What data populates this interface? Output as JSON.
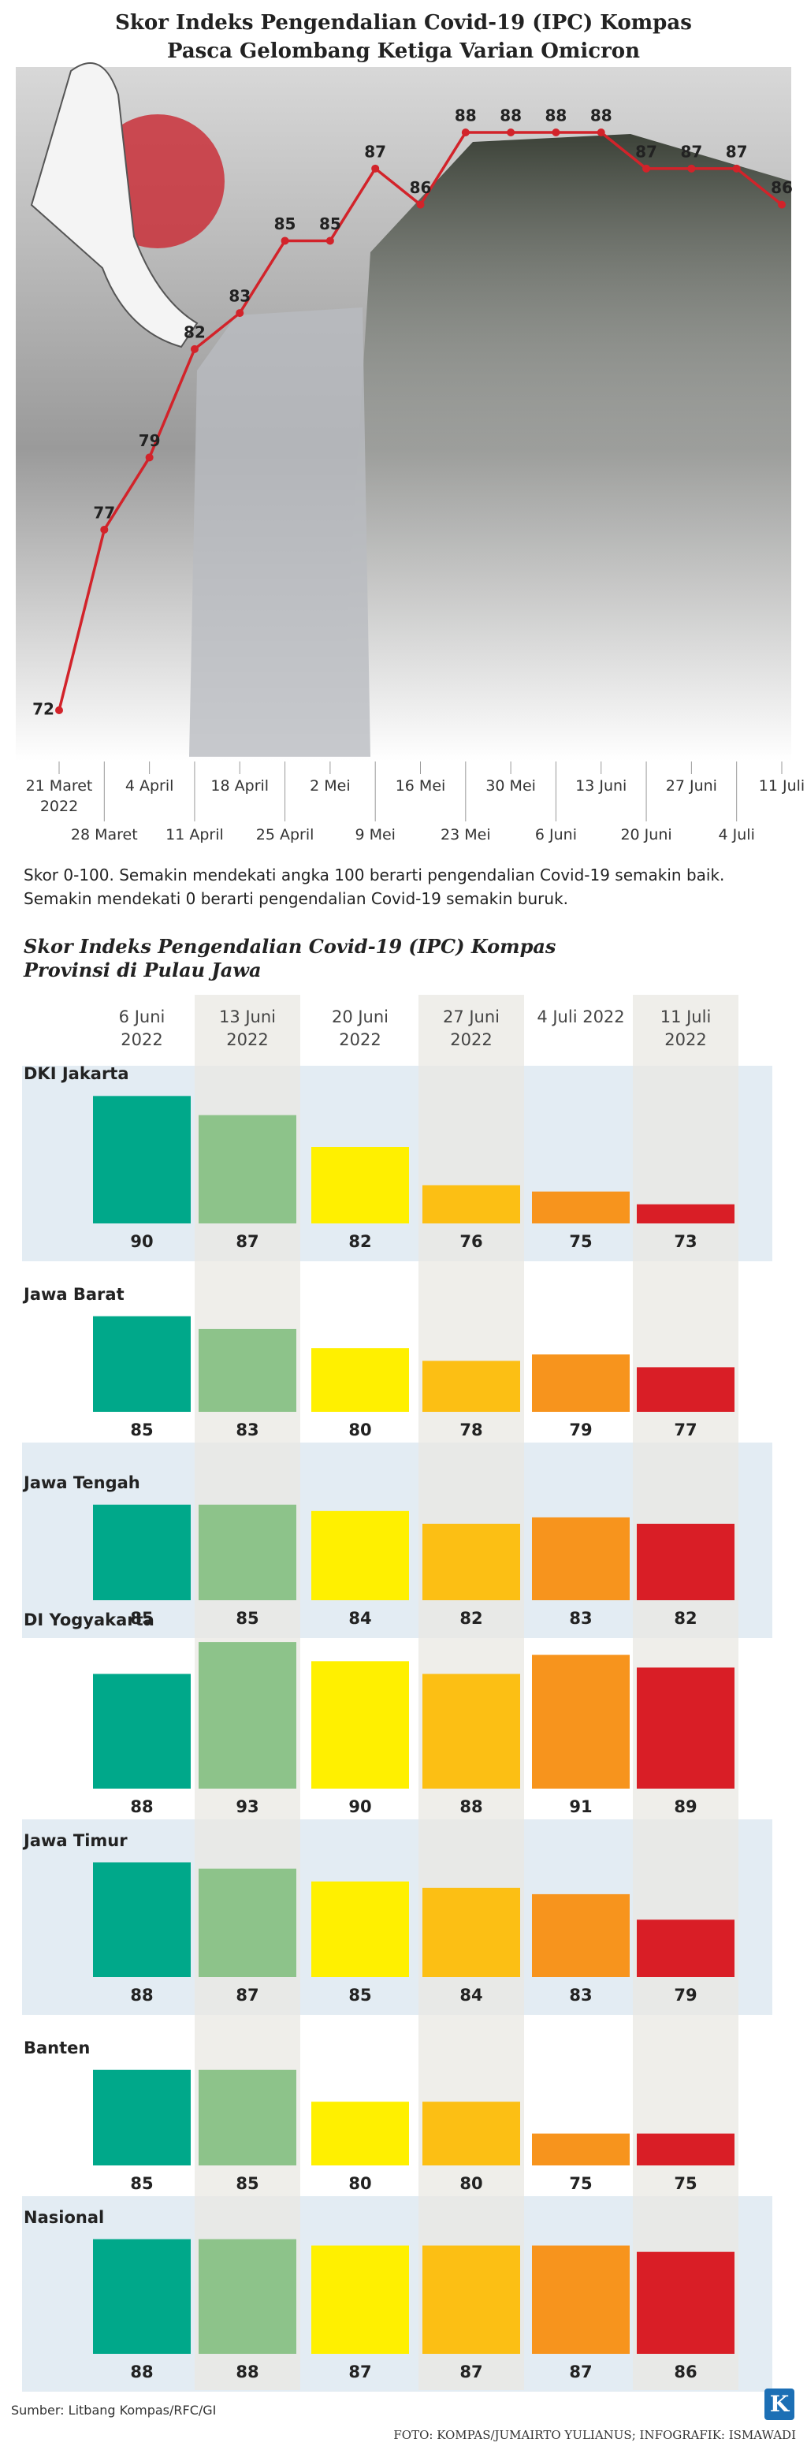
{
  "chart_data": [
    {
      "type": "line",
      "title": [
        "Skor Indeks Pengendalian Covid-19 (IPC) Kompas",
        "Pasca Gelombang Ketiga Varian Omicron"
      ],
      "categories": [
        "21 Maret 2022",
        "28 Maret",
        "4 April",
        "11 April",
        "18 April",
        "25 April",
        "2 Mei",
        "9 Mei",
        "16 Mei",
        "23 Mei",
        "30 Mei",
        "6 Juni",
        "13 Juni",
        "20 Juni",
        "27 Juni",
        "4 Juli",
        "11 Juli"
      ],
      "values": [
        72,
        77,
        79,
        82,
        83,
        85,
        85,
        87,
        86,
        88,
        88,
        88,
        88,
        87,
        87,
        87,
        86
      ],
      "color": "#d2232a",
      "note": [
        "Skor 0-100. Semakin mendekati angka 100 berarti pengendalian Covid-19 semakin baik.",
        "Semakin mendekati 0 berarti pengendalian Covid-19 semakin buruk."
      ]
    },
    {
      "type": "bar",
      "title": [
        "Skor Indeks Pengendalian Covid-19 (IPC) Kompas",
        "Provinsi di Pulau Jawa"
      ],
      "categories": [
        "6 Juni 2022",
        "13 Juni 2022",
        "20 Juni 2022",
        "27 Juni 2022",
        "4 Juli 2022",
        "11 Juli 2022"
      ],
      "colors": [
        "#00a88a",
        "#8dc38a",
        "#fff000",
        "#fcbf14",
        "#f7941d",
        "#d91e26"
      ],
      "ylim": [
        70,
        94
      ],
      "series": [
        {
          "name": "DKI Jakarta",
          "values": [
            90,
            87,
            82,
            76,
            75,
            73
          ]
        },
        {
          "name": "Jawa Barat",
          "values": [
            85,
            83,
            80,
            78,
            79,
            77
          ]
        },
        {
          "name": "Jawa Tengah",
          "values": [
            85,
            85,
            84,
            82,
            83,
            82
          ]
        },
        {
          "name": "DI Yogyakarta",
          "values": [
            88,
            93,
            90,
            88,
            91,
            89
          ]
        },
        {
          "name": "Jawa Timur",
          "values": [
            88,
            87,
            85,
            84,
            83,
            79
          ]
        },
        {
          "name": "Banten",
          "values": [
            85,
            85,
            80,
            80,
            75,
            75
          ]
        },
        {
          "name": "Nasional",
          "values": [
            88,
            88,
            87,
            87,
            87,
            86
          ]
        }
      ]
    }
  ],
  "footer": {
    "source": "Sumber: Litbang Kompas/RFC/GI",
    "credit": "FOTO: KOMPAS/JUMAIRTO YULIANUS; INFOGRAFIK: ISMAWADI",
    "logo": "K"
  }
}
